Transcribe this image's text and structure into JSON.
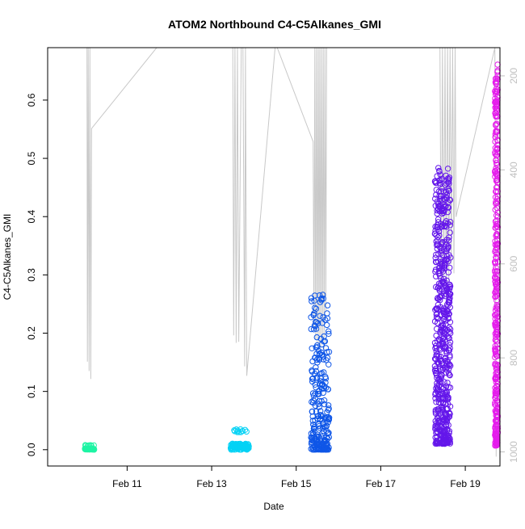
{
  "chart_data": {
    "type": "scatter",
    "title": "ATOM2 Northbound C4-C5Alkanes_GMI",
    "xlabel": "Date",
    "ylabel": "C4-C5Alkanes_GMI",
    "x_range_days": [
      9.12,
      19.82
    ],
    "ylim": [
      -0.028,
      0.69
    ],
    "x_ticks": [
      {
        "label": "Feb 11",
        "day": 11
      },
      {
        "label": "Feb 13",
        "day": 13
      },
      {
        "label": "Feb 15",
        "day": 15
      },
      {
        "label": "Feb 17",
        "day": 17
      },
      {
        "label": "Feb 19",
        "day": 19
      }
    ],
    "y_ticks": [
      0.0,
      0.1,
      0.2,
      0.3,
      0.4,
      0.5,
      0.6
    ],
    "y_tick_labels": [
      "0.0",
      "0.1",
      "0.2",
      "0.3",
      "0.4",
      "0.5",
      "0.6"
    ],
    "right_axis": {
      "ylim": [
        1030,
        140
      ],
      "ticks": [
        200,
        400,
        600,
        800,
        1000
      ],
      "tick_labels": [
        "200",
        "400",
        "600",
        "800",
        "1000"
      ],
      "color": "#c0c0c0"
    },
    "pressure_trace": [
      [
        10.05,
        140
      ],
      [
        10.06,
        808
      ],
      [
        10.08,
        140
      ],
      [
        10.1,
        828
      ],
      [
        10.12,
        140
      ],
      [
        10.14,
        845
      ],
      [
        10.16,
        312
      ],
      [
        11.7,
        140
      ],
      [
        13.5,
        140
      ],
      [
        13.52,
        752
      ],
      [
        13.55,
        140
      ],
      [
        13.58,
        768
      ],
      [
        13.61,
        140
      ],
      [
        13.64,
        766
      ],
      [
        13.7,
        140
      ],
      [
        13.74,
        140
      ],
      [
        13.78,
        818
      ],
      [
        13.8,
        140
      ],
      [
        13.83,
        838
      ],
      [
        14.5,
        140
      ],
      [
        14.55,
        140
      ],
      [
        15.4,
        340
      ],
      [
        15.42,
        742
      ],
      [
        15.44,
        140
      ],
      [
        15.46,
        762
      ],
      [
        15.48,
        140
      ],
      [
        15.5,
        768
      ],
      [
        15.52,
        140
      ],
      [
        15.54,
        770
      ],
      [
        15.56,
        140
      ],
      [
        15.58,
        778
      ],
      [
        15.6,
        140
      ],
      [
        15.62,
        760
      ],
      [
        15.64,
        140
      ],
      [
        15.66,
        780
      ],
      [
        15.68,
        140
      ],
      [
        15.7,
        700
      ],
      [
        15.72,
        140
      ],
      [
        18.4,
        140
      ],
      [
        18.43,
        670
      ],
      [
        18.46,
        140
      ],
      [
        18.49,
        650
      ],
      [
        18.52,
        140
      ],
      [
        18.55,
        700
      ],
      [
        18.58,
        140
      ],
      [
        18.61,
        640
      ],
      [
        18.64,
        140
      ],
      [
        18.67,
        600
      ],
      [
        18.7,
        140
      ],
      [
        18.73,
        620
      ],
      [
        18.76,
        140
      ],
      [
        18.78,
        500
      ],
      [
        19.7,
        140
      ],
      [
        19.73,
        1010
      ]
    ],
    "series": [
      {
        "color": "#1EF4A4",
        "x_range": [
          10.0,
          10.22
        ],
        "y_range": [
          0.0,
          0.008
        ],
        "n": 60,
        "jitter": 0.01
      },
      {
        "color": "#04D2F5",
        "x_range": [
          13.45,
          13.88
        ],
        "y_range": [
          0.0,
          0.035
        ],
        "n": 110,
        "jitter": 0.01
      },
      {
        "color": "#0F56E7",
        "x_range": [
          15.35,
          15.78
        ],
        "y_range": [
          0.0,
          0.27
        ],
        "n": 260,
        "jitter": 0.0
      },
      {
        "color": "#6417EA",
        "x_range": [
          18.28,
          18.65
        ],
        "y_range": [
          0.01,
          0.485
        ],
        "n": 560,
        "jitter": 0.0
      },
      {
        "color": "#E51CEC",
        "x_range": [
          19.7,
          19.77
        ],
        "y_range": [
          0.007,
          0.665
        ],
        "n": 340,
        "jitter": 0.0
      }
    ]
  }
}
